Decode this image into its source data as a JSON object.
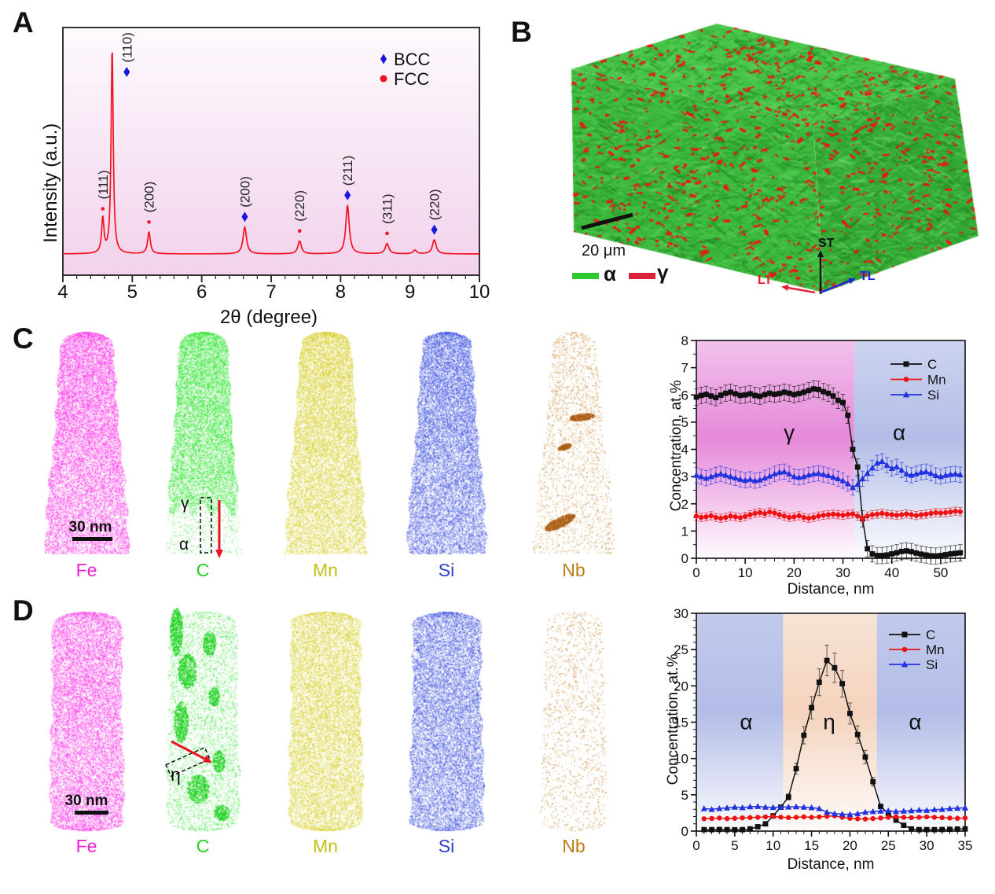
{
  "panels": {
    "A": {
      "label": "A",
      "legend": [
        {
          "label": "BCC",
          "marker": "diamond",
          "color": "#1a16dd"
        },
        {
          "label": "FCC",
          "marker": "circle",
          "color": "#f01220"
        }
      ],
      "plot_bg_top": "#fdfafd",
      "plot_bg_bottom": "#f2d2ec",
      "curve_color": "#f41120"
    },
    "B": {
      "label": "B",
      "scale_bar": "20 μm",
      "phase_legend": [
        {
          "label": "α",
          "color": "#2fc82f"
        },
        {
          "label": "γ",
          "color": "#d92038"
        }
      ],
      "axes": {
        "up": {
          "label": "ST",
          "color": "#111111"
        },
        "left": {
          "label": "LT",
          "color": "#e81a2c"
        },
        "right": {
          "label": "TL",
          "color": "#2222dd"
        }
      },
      "volume_colors": {
        "matrix": "#3cba3c",
        "second_phase": "#ee1212"
      }
    },
    "C": {
      "label": "C",
      "scale_bar": "30 nm",
      "tips": [
        {
          "element": "Fe",
          "color": "#ff30e8",
          "label_color": "#ee1cd2"
        },
        {
          "element": "C",
          "color": "#2ee52e",
          "label_color": "#22d022"
        },
        {
          "element": "Mn",
          "color": "#d6ce28",
          "label_color": "#c2c21a"
        },
        {
          "element": "Si",
          "color": "#4054e0",
          "label_color": "#3140cc"
        },
        {
          "element": "Nb",
          "color": "#cc8c3c",
          "label_color": "#bf7d18"
        }
      ],
      "roi_labels": {
        "top": "γ",
        "bottom": "α"
      },
      "roi_arrow_color": "#e51525"
    },
    "D": {
      "label": "D",
      "scale_bar": "30 nm",
      "tips": [
        {
          "element": "Fe",
          "color": "#ff30e8",
          "label_color": "#ee1cd2"
        },
        {
          "element": "C",
          "color": "#2ee52e",
          "label_color": "#22d022"
        },
        {
          "element": "Mn",
          "color": "#d6ce28",
          "label_color": "#c2c21a"
        },
        {
          "element": "Si",
          "color": "#4054e0",
          "label_color": "#3140cc"
        },
        {
          "element": "Nb",
          "color": "#cc8c3c",
          "label_color": "#bf7d18"
        }
      ],
      "roi_labels": {
        "band": "η"
      },
      "roi_arrow_color": "#e51525"
    }
  },
  "chart_data": [
    {
      "id": "xrd",
      "type": "line",
      "panel": "A",
      "xlabel": "2θ (degree)",
      "ylabel": "Intensity (a.u.)",
      "xlim": [
        4,
        10
      ],
      "xticks": [
        4,
        5,
        6,
        7,
        8,
        9,
        10
      ],
      "x_minor_step": 0.2,
      "legend_position": "top-right",
      "grid": false,
      "peaks": [
        {
          "two_theta": 4.575,
          "hkl": "(111)",
          "phase": "FCC",
          "rel_intensity": 0.169,
          "width": 0.02
        },
        {
          "two_theta": 4.71,
          "hkl": "(110)",
          "phase": "BCC",
          "rel_intensity": 1.0,
          "width": 0.018
        },
        {
          "two_theta": 5.24,
          "hkl": "(200)",
          "phase": "FCC",
          "rel_intensity": 0.105,
          "width": 0.024
        },
        {
          "two_theta": 6.62,
          "hkl": "(200)",
          "phase": "BCC",
          "rel_intensity": 0.13,
          "width": 0.03
        },
        {
          "two_theta": 7.41,
          "hkl": "(220)",
          "phase": "FCC",
          "rel_intensity": 0.062,
          "width": 0.03
        },
        {
          "two_theta": 8.1,
          "hkl": "(211)",
          "phase": "BCC",
          "rel_intensity": 0.235,
          "width": 0.03
        },
        {
          "two_theta": 8.67,
          "hkl": "(311)",
          "phase": "FCC",
          "rel_intensity": 0.05,
          "width": 0.032
        },
        {
          "two_theta": 9.07,
          "hkl": "",
          "phase": "",
          "rel_intensity": 0.018,
          "width": 0.03
        },
        {
          "two_theta": 9.35,
          "hkl": "(220)",
          "phase": "BCC",
          "rel_intensity": 0.068,
          "width": 0.032
        }
      ]
    },
    {
      "id": "profC",
      "type": "line",
      "panel": "C",
      "xlabel": "Distance, nm",
      "ylabel": "Concentration, at.%",
      "xlim": [
        0,
        55
      ],
      "ylim": [
        0,
        8
      ],
      "xticks": [
        0,
        10,
        20,
        30,
        40,
        50
      ],
      "yticks": [
        0,
        1,
        2,
        3,
        4,
        5,
        6,
        7,
        8
      ],
      "x_minor_step": 2,
      "y_minor_step": 0.5,
      "x_start": 0,
      "x_step": 1,
      "legend_position": "top-right",
      "grid": false,
      "regions": [
        {
          "label": "γ",
          "from": 0,
          "to": 32.3,
          "color": "#e06cd0",
          "opacity_stops": [
            0.42,
            0.8,
            0.03
          ],
          "label_x": 19,
          "label_y": 4.35
        },
        {
          "label": "α",
          "from": 32.3,
          "to": 55,
          "color": "#8494d8",
          "opacity_stops": [
            0.4,
            0.62,
            0.03
          ],
          "label_x": 41.5,
          "label_y": 4.35
        }
      ],
      "series": [
        {
          "name": "C",
          "color": "#111111",
          "marker": "square",
          "err": 0.3,
          "values": [
            5.92,
            5.98,
            6.02,
            5.96,
            5.9,
            5.99,
            6.06,
            6.1,
            6.04,
            5.98,
            6.0,
            6.04,
            5.98,
            5.95,
            6.01,
            6.06,
            6.02,
            6.05,
            6.1,
            6.06,
            6.01,
            6.05,
            6.1,
            6.16,
            6.22,
            6.2,
            6.12,
            6.06,
            5.96,
            5.8,
            5.72,
            5.25,
            4.0,
            3.35,
            1.45,
            0.35,
            0.16,
            0.1,
            0.1,
            0.12,
            0.16,
            0.2,
            0.25,
            0.27,
            0.24,
            0.19,
            0.15,
            0.12,
            0.09,
            0.08,
            0.1,
            0.13,
            0.16,
            0.18,
            0.2
          ]
        },
        {
          "name": "Mn",
          "color": "#ee1212",
          "marker": "circle",
          "err": 0.15,
          "values": [
            1.55,
            1.5,
            1.52,
            1.56,
            1.5,
            1.47,
            1.5,
            1.55,
            1.52,
            1.49,
            1.54,
            1.6,
            1.65,
            1.68,
            1.64,
            1.7,
            1.66,
            1.6,
            1.55,
            1.5,
            1.52,
            1.56,
            1.5,
            1.47,
            1.5,
            1.55,
            1.58,
            1.6,
            1.62,
            1.6,
            1.58,
            1.61,
            1.63,
            1.55,
            1.45,
            1.55,
            1.6,
            1.62,
            1.65,
            1.62,
            1.6,
            1.58,
            1.6,
            1.63,
            1.6,
            1.57,
            1.6,
            1.62,
            1.65,
            1.68,
            1.66,
            1.68,
            1.7,
            1.73,
            1.71
          ]
        },
        {
          "name": "Si",
          "color": "#2233dd",
          "marker": "triangle",
          "err": 0.28,
          "values": [
            3.05,
            3.0,
            2.94,
            3.0,
            3.06,
            3.1,
            3.05,
            3.0,
            2.95,
            2.9,
            2.86,
            2.9,
            2.85,
            2.88,
            2.95,
            3.02,
            3.1,
            3.16,
            3.18,
            3.1,
            3.0,
            2.97,
            3.0,
            3.06,
            3.1,
            3.12,
            3.08,
            3.04,
            2.98,
            2.92,
            2.85,
            2.74,
            2.6,
            2.72,
            2.92,
            3.12,
            3.32,
            3.5,
            3.56,
            3.42,
            3.3,
            3.36,
            3.24,
            3.1,
            3.05,
            3.1,
            3.16,
            3.18,
            3.12,
            3.04,
            3.0,
            3.05,
            3.08,
            3.1,
            3.07
          ]
        }
      ]
    },
    {
      "id": "profD",
      "type": "line",
      "panel": "D",
      "xlabel": "Distance, nm",
      "ylabel": "Concentration, at.%",
      "xlim": [
        0,
        35
      ],
      "ylim": [
        0,
        30
      ],
      "xticks": [
        0,
        5,
        10,
        15,
        20,
        25,
        30,
        35
      ],
      "yticks": [
        0,
        5,
        10,
        15,
        20,
        25,
        30
      ],
      "x_minor_step": 1,
      "y_minor_step": 1,
      "x_start": 1,
      "x_step": 1,
      "legend_position": "top-right",
      "grid": false,
      "regions": [
        {
          "label": "α",
          "from": 0,
          "to": 11.3,
          "color": "#8494d8",
          "opacity_stops": [
            0.5,
            0.62,
            0.04
          ],
          "label_x": 6.5,
          "label_y": 14
        },
        {
          "label": "η",
          "from": 11.3,
          "to": 23.5,
          "color": "#e8a87c",
          "opacity_stops": [
            0.32,
            0.5,
            0.05
          ],
          "label_x": 17.3,
          "label_y": 14
        },
        {
          "label": "α",
          "from": 23.5,
          "to": 35,
          "color": "#8494d8",
          "opacity_stops": [
            0.5,
            0.62,
            0.04
          ],
          "label_x": 28.5,
          "label_y": 14
        }
      ],
      "series": [
        {
          "name": "C",
          "color": "#111111",
          "marker": "square",
          "err_frac": 0.09,
          "err_min": 0.12,
          "values": [
            0.2,
            0.2,
            0.22,
            0.2,
            0.18,
            0.2,
            0.3,
            0.6,
            1.0,
            2.1,
            3.3,
            4.7,
            8.6,
            13.2,
            17.0,
            20.5,
            23.5,
            22.5,
            20.3,
            16.2,
            13.3,
            10.2,
            6.8,
            3.4,
            2.4,
            1.5,
            0.8,
            0.3,
            0.2,
            0.2,
            0.2,
            0.22,
            0.25,
            0.28,
            0.3
          ]
        },
        {
          "name": "Mn",
          "color": "#ee1212",
          "marker": "circle",
          "err": 0,
          "values": [
            1.7,
            1.74,
            1.8,
            1.72,
            1.76,
            1.82,
            1.86,
            1.9,
            1.96,
            2.0,
            1.92,
            1.86,
            1.9,
            1.96,
            1.9,
            1.96,
            2.02,
            2.1,
            1.9,
            1.76,
            1.7,
            1.66,
            1.72,
            1.8,
            1.9,
            1.96,
            1.9,
            1.86,
            1.9,
            1.96,
            1.9,
            1.86,
            1.8,
            1.76,
            1.8
          ]
        },
        {
          "name": "Si",
          "color": "#2233dd",
          "marker": "triangle",
          "err": 0,
          "values": [
            3.1,
            3.0,
            3.12,
            3.2,
            3.3,
            3.24,
            3.36,
            3.4,
            3.3,
            3.26,
            3.3,
            3.32,
            3.36,
            3.3,
            3.24,
            3.1,
            2.6,
            2.4,
            2.34,
            2.3,
            2.4,
            2.6,
            2.7,
            2.76,
            2.8,
            2.7,
            2.76,
            2.82,
            2.9,
            2.86,
            2.96,
            3.0,
            3.1,
            3.16,
            3.2
          ]
        }
      ]
    }
  ]
}
